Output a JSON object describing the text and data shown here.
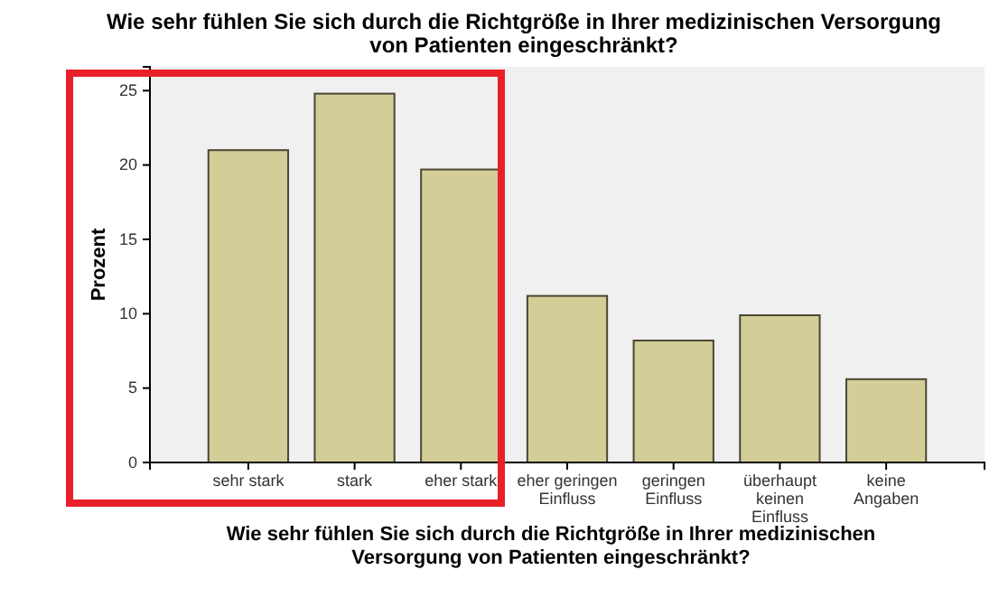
{
  "chart_data": {
    "type": "bar",
    "title": "Wie sehr fühlen Sie sich durch die Richtgröße in Ihrer medizinischen Versorgung von Patienten eingeschränkt?",
    "xlabel": "Wie sehr fühlen Sie sich durch die Richtgröße in Ihrer medizinischen Versorgung von Patienten eingeschränkt?",
    "ylabel": "Prozent",
    "categories": [
      "sehr stark",
      "stark",
      "eher stark",
      "eher geringen Einfluss",
      "geringen Einfluss",
      "überhaupt keinen Einfluss",
      "keine Angaben"
    ],
    "values": [
      21.0,
      24.8,
      19.7,
      11.2,
      8.2,
      9.9,
      5.6
    ],
    "color": "#d3cd98",
    "ylim": [
      0,
      26.6
    ],
    "yticks": [
      0,
      5,
      10,
      15,
      20,
      25
    ],
    "grid": false
  }
}
